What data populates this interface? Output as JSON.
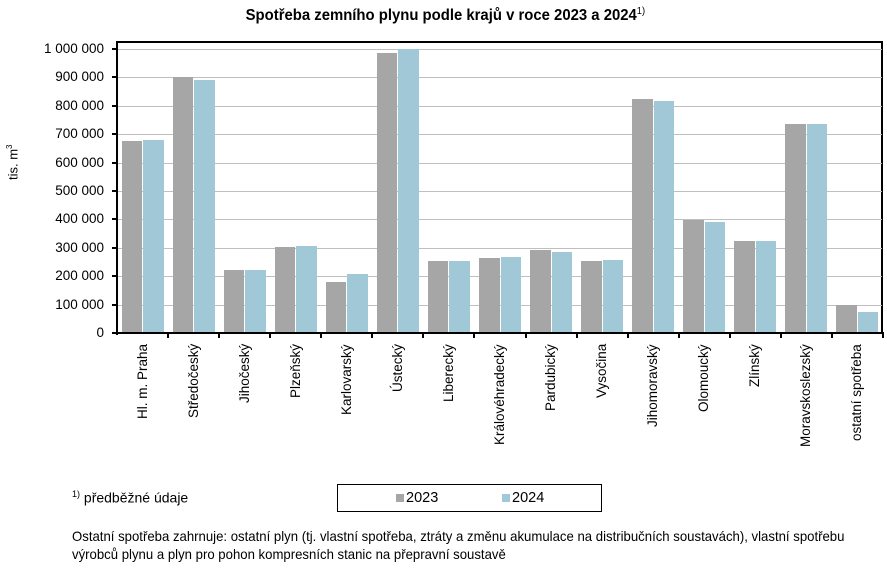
{
  "chart_data": {
    "type": "bar",
    "title": "Spotřeba zemního plynu podle krajů v roce 2023 a 2024",
    "title_footnote_marker": "1)",
    "xlabel": "",
    "ylabel": "tis. m³",
    "ylim": [
      0,
      1000000
    ],
    "yticks": [
      0,
      100000,
      200000,
      300000,
      400000,
      500000,
      600000,
      700000,
      800000,
      900000,
      1000000
    ],
    "ytick_labels": [
      "0",
      "100 000",
      "200 000",
      "300 000",
      "400 000",
      "500 000",
      "600 000",
      "700 000",
      "800 000",
      "900 000",
      "1 000 000"
    ],
    "grid": true,
    "legend_position": "bottom",
    "categories": [
      "Hl. m. Praha",
      "Středočeský",
      "Jihočeský",
      "Plzeňský",
      "Karlovarský",
      "Ústecký",
      "Liberecký",
      "Královéhradecký",
      "Pardubický",
      "Vysočina",
      "Jihomoravský",
      "Olomoucký",
      "Zlínský",
      "Moravskoslezský",
      "ostatní spotřeba"
    ],
    "series": [
      {
        "name": "2023",
        "color": "#a6a6a6",
        "values": [
          675000,
          901000,
          223000,
          304000,
          181000,
          986000,
          254000,
          265000,
          293000,
          254000,
          823000,
          397000,
          325000,
          735000,
          97000
        ]
      },
      {
        "name": "2024",
        "color": "#a0c8d6",
        "values": [
          678000,
          890000,
          223000,
          308000,
          208000,
          999000,
          254000,
          268000,
          286000,
          258000,
          816000,
          392000,
          325000,
          735000,
          75000
        ]
      }
    ]
  },
  "labels": {
    "title": "Spotřeba zemního plynu podle krajů v roce 2023 a 2024",
    "title_sup": "1)",
    "ylabel": "tis. m",
    "ylabel_sup": "3",
    "footnote_sup": "1)",
    "footnote": " předběžné údaje",
    "legend_2023": "2023",
    "legend_2024": "2024",
    "note": "Ostatní spotřeba zahrnuje: ostatní plyn (tj. vlastní spotřeba, ztráty a změnu akumulace na distribučních soustavách), vlastní spotřebu výrobců plynu a plyn pro pohon kompresních stanic na přepravní soustavě"
  }
}
